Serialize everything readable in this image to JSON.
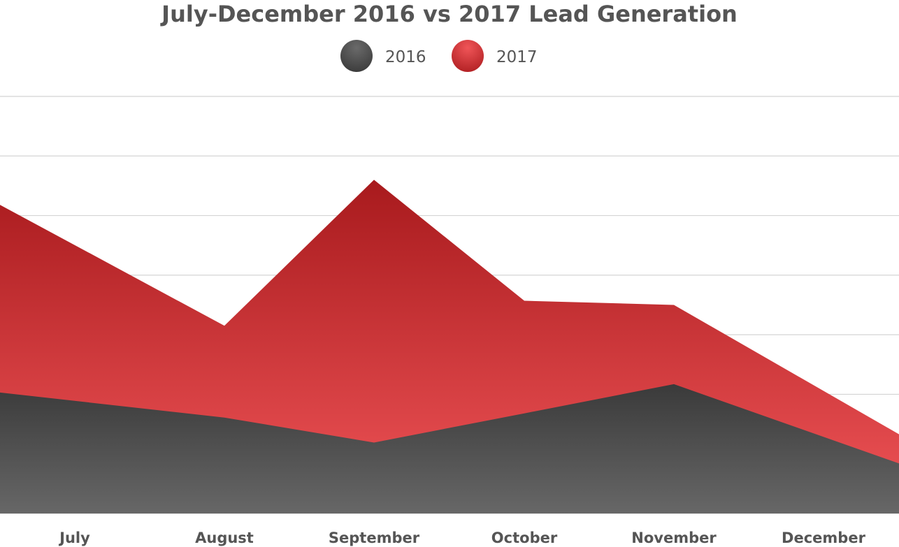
{
  "chart_data": {
    "type": "area",
    "title": "July-December 2016 vs 2017 Lead Generation",
    "categories": [
      "July",
      "August",
      "September",
      "October",
      "November",
      "December"
    ],
    "series": [
      {
        "name": "2016",
        "values": [
          2.9,
          2.3,
          1.7,
          2.4,
          3.1,
          1.2
        ]
      },
      {
        "name": "2017",
        "values": [
          7.4,
          4.5,
          8.0,
          5.1,
          5.0,
          1.9
        ]
      }
    ],
    "ylim": [
      0,
      10
    ],
    "grid": true,
    "legend_position": "top-center",
    "colors": {
      "series_2016_top": "#3a3a3a",
      "series_2016_bottom": "#676767",
      "series_2017_top": "#a81a1d",
      "series_2017_bottom": "#f05558",
      "title": "#555555",
      "grid": "#d4d4d4"
    }
  }
}
